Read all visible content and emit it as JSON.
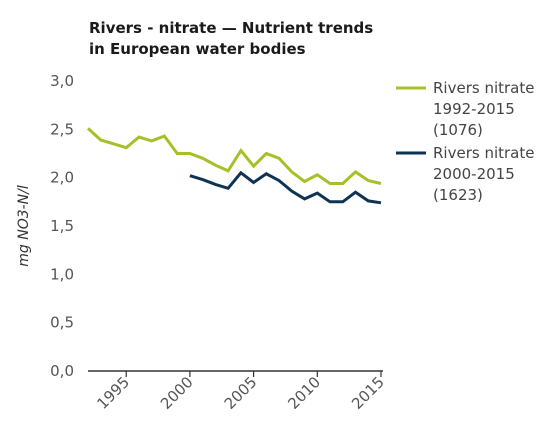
{
  "chart_data": {
    "type": "line",
    "title": "Rivers - nitrate — Nutrient trends in European water bodies",
    "title_lines": [
      "Rivers - nitrate — Nutrient trends",
      "in European water bodies"
    ],
    "xlabel": "",
    "ylabel": "mg NO3-N/l",
    "xlim": [
      1992,
      2015
    ],
    "ylim": [
      0,
      3
    ],
    "yticks": [
      0,
      0.5,
      1,
      1.5,
      2,
      2.5,
      3
    ],
    "ytick_labels": [
      "0,0",
      "0,5",
      "1,0",
      "1,5",
      "2,0",
      "2,5",
      "3,0"
    ],
    "xticks": [
      1995,
      2000,
      2005,
      2010,
      2015
    ],
    "xtick_labels": [
      "1995",
      "2000",
      "2005",
      "2010",
      "2015"
    ],
    "grid": false,
    "legend_position": "right",
    "series": [
      {
        "name": "Rivers nitrate 1992-2015 (1076)",
        "legend_lines": [
          "Rivers nitrate",
          "1992-2015",
          "(1076)"
        ],
        "color": "#a8bf2a",
        "x": [
          1992,
          1993,
          1994,
          1995,
          1996,
          1997,
          1998,
          1999,
          2000,
          2001,
          2002,
          2003,
          2004,
          2005,
          2006,
          2007,
          2008,
          2009,
          2010,
          2011,
          2012,
          2013,
          2014,
          2015
        ],
        "values": [
          2.51,
          2.39,
          2.35,
          2.31,
          2.42,
          2.38,
          2.43,
          2.25,
          2.25,
          2.2,
          2.13,
          2.07,
          2.28,
          2.12,
          2.25,
          2.2,
          2.06,
          1.96,
          2.03,
          1.94,
          1.94,
          2.06,
          1.97,
          1.94
        ]
      },
      {
        "name": "Rivers nitrate 2000-2015 (1623)",
        "legend_lines": [
          "Rivers nitrate",
          "2000-2015",
          "(1623)"
        ],
        "color": "#0f3352",
        "x": [
          2000,
          2001,
          2002,
          2003,
          2004,
          2005,
          2006,
          2007,
          2008,
          2009,
          2010,
          2011,
          2012,
          2013,
          2014,
          2015
        ],
        "values": [
          2.02,
          1.98,
          1.93,
          1.89,
          2.05,
          1.95,
          2.04,
          1.97,
          1.86,
          1.78,
          1.84,
          1.75,
          1.75,
          1.85,
          1.76,
          1.74
        ]
      }
    ]
  }
}
